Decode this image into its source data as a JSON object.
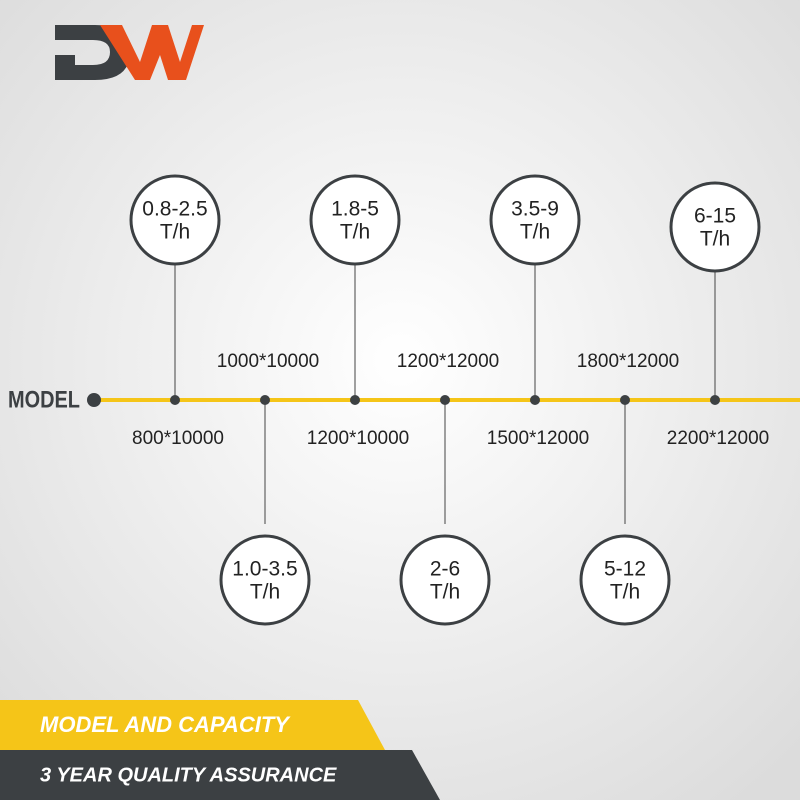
{
  "axis_label": "MODEL",
  "nodes": [
    {
      "model": "800*10000",
      "capacity": "0.8-2.5",
      "unit": "T/h"
    },
    {
      "model": "1000*10000",
      "capacity": "1.0-3.5",
      "unit": "T/h"
    },
    {
      "model": "1200*10000",
      "capacity": "1.8-5",
      "unit": "T/h"
    },
    {
      "model": "1200*12000",
      "capacity": "2-6",
      "unit": "T/h"
    },
    {
      "model": "1500*12000",
      "capacity": "3.5-9",
      "unit": "T/h"
    },
    {
      "model": "1800*12000",
      "capacity": "5-12",
      "unit": "T/h"
    },
    {
      "model": "2200*12000",
      "capacity": "6-15",
      "unit": "T/h"
    }
  ],
  "banners": [
    "MODEL AND CAPACITY",
    "3 YEAR QUALITY ASSURANCE"
  ]
}
